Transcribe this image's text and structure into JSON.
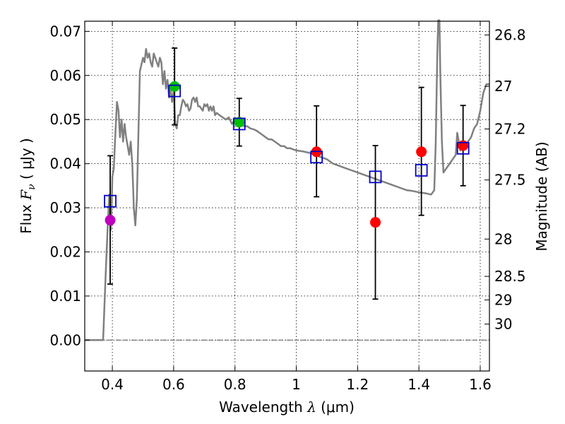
{
  "chart_data": {
    "type": "scatter",
    "xlabel_text": "Wavelength",
    "xlabel_symbol": "λ",
    "xlabel_unit": "(μm)",
    "ylabel_text": "Flux",
    "ylabel_symbol": "F",
    "ylabel_subscript": "ν",
    "ylabel_unit": "( μJy )",
    "y2label": "Magnitude (AB)",
    "xlim": [
      0.31,
      1.63
    ],
    "ylim": [
      -0.007,
      0.0723
    ],
    "grid": true,
    "x_ticks": [
      0.4,
      0.6,
      0.8,
      1.0,
      1.2,
      1.4,
      1.6
    ],
    "x_tick_labels": [
      "0.4",
      "0.6",
      "0.8",
      "1",
      "1.2",
      "1.4",
      "1.6"
    ],
    "y_ticks": [
      0.0,
      0.01,
      0.02,
      0.03,
      0.04,
      0.05,
      0.06,
      0.07
    ],
    "y_tick_labels": [
      "0.00",
      "0.01",
      "0.02",
      "0.03",
      "0.04",
      "0.05",
      "0.06",
      "0.07"
    ],
    "mag_ticks": [
      {
        "label": "26.8",
        "mag": 26.8
      },
      {
        "label": "27",
        "mag": 27.0
      },
      {
        "label": "27.2",
        "mag": 27.2
      },
      {
        "label": "27.5",
        "mag": 27.5
      },
      {
        "label": "28",
        "mag": 28.0
      },
      {
        "label": "28.5",
        "mag": 28.5
      },
      {
        "label": "29",
        "mag": 29.0
      },
      {
        "label": "30",
        "mag": 30.0
      }
    ],
    "colors": {
      "template": "#808080",
      "model": "#0000cc",
      "errorbar": "#000000",
      "zero_line": "#555555",
      "grid": "#000000"
    },
    "model_template": [
      [
        0.31,
        0.0
      ],
      [
        0.37,
        0.0
      ],
      [
        0.375,
        0.009
      ],
      [
        0.38,
        0.018
      ],
      [
        0.385,
        0.026
      ],
      [
        0.39,
        0.033
      ],
      [
        0.395,
        0.025
      ],
      [
        0.398,
        0.031
      ],
      [
        0.4,
        0.037
      ],
      [
        0.405,
        0.039
      ],
      [
        0.41,
        0.047
      ],
      [
        0.415,
        0.054
      ],
      [
        0.42,
        0.052
      ],
      [
        0.425,
        0.046
      ],
      [
        0.43,
        0.05
      ],
      [
        0.435,
        0.045
      ],
      [
        0.44,
        0.049
      ],
      [
        0.445,
        0.046
      ],
      [
        0.45,
        0.044
      ],
      [
        0.455,
        0.042
      ],
      [
        0.46,
        0.045
      ],
      [
        0.465,
        0.04
      ],
      [
        0.47,
        0.03
      ],
      [
        0.475,
        0.026
      ],
      [
        0.48,
        0.032
      ],
      [
        0.485,
        0.047
      ],
      [
        0.49,
        0.061
      ],
      [
        0.5,
        0.064
      ],
      [
        0.505,
        0.063
      ],
      [
        0.51,
        0.066
      ],
      [
        0.515,
        0.064
      ],
      [
        0.52,
        0.065
      ],
      [
        0.525,
        0.063
      ],
      [
        0.53,
        0.062
      ],
      [
        0.535,
        0.065
      ],
      [
        0.54,
        0.064
      ],
      [
        0.545,
        0.063
      ],
      [
        0.55,
        0.062
      ],
      [
        0.555,
        0.064
      ],
      [
        0.56,
        0.063
      ],
      [
        0.565,
        0.058
      ],
      [
        0.57,
        0.061
      ],
      [
        0.575,
        0.057
      ],
      [
        0.58,
        0.059
      ],
      [
        0.585,
        0.055
      ],
      [
        0.59,
        0.057
      ],
      [
        0.595,
        0.054
      ],
      [
        0.6,
        0.0565
      ],
      [
        0.605,
        0.049
      ],
      [
        0.61,
        0.048
      ],
      [
        0.615,
        0.051
      ],
      [
        0.62,
        0.051
      ],
      [
        0.625,
        0.053
      ],
      [
        0.63,
        0.0545
      ],
      [
        0.635,
        0.054
      ],
      [
        0.64,
        0.053
      ],
      [
        0.645,
        0.0535
      ],
      [
        0.65,
        0.052
      ],
      [
        0.655,
        0.0525
      ],
      [
        0.66,
        0.0545
      ],
      [
        0.665,
        0.055
      ],
      [
        0.67,
        0.054
      ],
      [
        0.675,
        0.055
      ],
      [
        0.68,
        0.053
      ],
      [
        0.685,
        0.053
      ],
      [
        0.69,
        0.0525
      ],
      [
        0.695,
        0.052
      ],
      [
        0.7,
        0.0535
      ],
      [
        0.705,
        0.053
      ],
      [
        0.71,
        0.0535
      ],
      [
        0.715,
        0.052
      ],
      [
        0.72,
        0.053
      ],
      [
        0.725,
        0.052
      ],
      [
        0.73,
        0.053
      ],
      [
        0.735,
        0.051
      ],
      [
        0.74,
        0.0515
      ],
      [
        0.75,
        0.051
      ],
      [
        0.76,
        0.0505
      ],
      [
        0.77,
        0.05
      ],
      [
        0.78,
        0.0505
      ],
      [
        0.79,
        0.049
      ],
      [
        0.8,
        0.05
      ],
      [
        0.81,
        0.0495
      ],
      [
        0.82,
        0.049
      ],
      [
        0.83,
        0.0485
      ],
      [
        0.84,
        0.0485
      ],
      [
        0.85,
        0.048
      ],
      [
        0.86,
        0.0478
      ],
      [
        0.87,
        0.0475
      ],
      [
        0.88,
        0.047
      ],
      [
        0.89,
        0.0465
      ],
      [
        0.9,
        0.046
      ],
      [
        0.91,
        0.0455
      ],
      [
        0.92,
        0.0455
      ],
      [
        0.93,
        0.045
      ],
      [
        0.94,
        0.0445
      ],
      [
        0.95,
        0.044
      ],
      [
        0.96,
        0.044
      ],
      [
        0.97,
        0.0435
      ],
      [
        0.98,
        0.0435
      ],
      [
        1.0,
        0.043
      ],
      [
        1.02,
        0.0428
      ],
      [
        1.04,
        0.0425
      ],
      [
        1.06,
        0.042
      ],
      [
        1.08,
        0.0415
      ],
      [
        1.1,
        0.041
      ],
      [
        1.12,
        0.04
      ],
      [
        1.14,
        0.0395
      ],
      [
        1.16,
        0.039
      ],
      [
        1.18,
        0.0385
      ],
      [
        1.2,
        0.038
      ],
      [
        1.22,
        0.0375
      ],
      [
        1.24,
        0.037
      ],
      [
        1.26,
        0.0365
      ],
      [
        1.28,
        0.036
      ],
      [
        1.3,
        0.0355
      ],
      [
        1.32,
        0.035
      ],
      [
        1.34,
        0.0345
      ],
      [
        1.36,
        0.034
      ],
      [
        1.38,
        0.0338
      ],
      [
        1.4,
        0.0335
      ],
      [
        1.42,
        0.0333
      ],
      [
        1.44,
        0.033
      ],
      [
        1.45,
        0.034
      ],
      [
        1.455,
        0.045
      ],
      [
        1.46,
        0.065
      ],
      [
        1.463,
        0.0725
      ],
      [
        1.467,
        0.0725
      ],
      [
        1.47,
        0.06
      ],
      [
        1.475,
        0.045
      ],
      [
        1.48,
        0.038
      ],
      [
        1.49,
        0.039
      ],
      [
        1.5,
        0.04
      ],
      [
        1.51,
        0.041
      ],
      [
        1.52,
        0.042
      ],
      [
        1.525,
        0.047
      ],
      [
        1.53,
        0.045
      ],
      [
        1.535,
        0.043
      ],
      [
        1.54,
        0.044
      ],
      [
        1.55,
        0.044
      ],
      [
        1.56,
        0.045
      ],
      [
        1.57,
        0.046
      ],
      [
        1.58,
        0.048
      ],
      [
        1.59,
        0.049
      ],
      [
        1.6,
        0.052
      ],
      [
        1.61,
        0.056
      ],
      [
        1.62,
        0.058
      ],
      [
        1.63,
        0.058
      ]
    ],
    "model_points": [
      {
        "x": 0.393,
        "y": 0.0315
      },
      {
        "x": 0.603,
        "y": 0.0565
      },
      {
        "x": 0.814,
        "y": 0.049
      },
      {
        "x": 1.066,
        "y": 0.0415
      },
      {
        "x": 1.258,
        "y": 0.037
      },
      {
        "x": 1.408,
        "y": 0.0385
      },
      {
        "x": 1.544,
        "y": 0.0435
      }
    ],
    "observed": [
      {
        "x": 0.393,
        "y": 0.0272,
        "yerr_low": 0.0127,
        "yerr_high": 0.0418,
        "color": "#bf00bf"
      },
      {
        "x": 0.603,
        "y": 0.0575,
        "yerr_low": 0.0488,
        "yerr_high": 0.0662,
        "color": "#00bf00"
      },
      {
        "x": 0.814,
        "y": 0.0494,
        "yerr_low": 0.044,
        "yerr_high": 0.0548,
        "color": "#00bf00"
      },
      {
        "x": 1.066,
        "y": 0.0427,
        "yerr_low": 0.0325,
        "yerr_high": 0.0531,
        "color": "#ff0000"
      },
      {
        "x": 1.258,
        "y": 0.0267,
        "yerr_low": 0.0093,
        "yerr_high": 0.0441,
        "color": "#ff0000"
      },
      {
        "x": 1.408,
        "y": 0.0427,
        "yerr_low": 0.0283,
        "yerr_high": 0.0573,
        "color": "#ff0000"
      },
      {
        "x": 1.544,
        "y": 0.0441,
        "yerr_low": 0.035,
        "yerr_high": 0.0532,
        "color": "#ff0000"
      }
    ]
  }
}
